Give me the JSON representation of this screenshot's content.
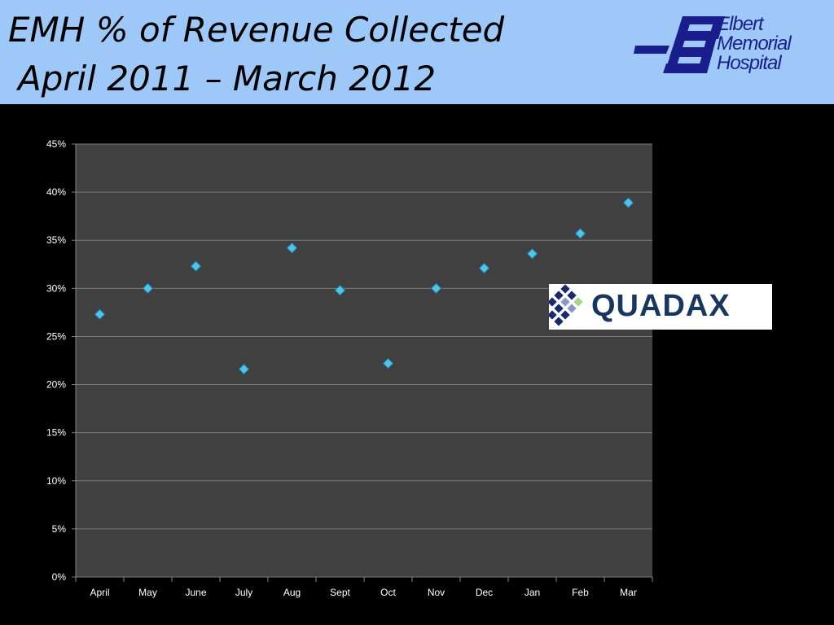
{
  "header": {
    "title_line1": "EMH % of Revenue Collected",
    "title_line2": "April 2011 – March 2012",
    "logo_line1": "Elbert",
    "logo_line2": "Memorial",
    "logo_line3": "Hospital",
    "bg_color": "#9dc8f7",
    "logo_color": "#1a1e8c"
  },
  "sponsor": {
    "name": "QUADAX",
    "color": "#17375e"
  },
  "chart_data": {
    "type": "scatter",
    "title": "",
    "xlabel": "",
    "ylabel": "",
    "categories": [
      "April",
      "May",
      "June",
      "July",
      "Aug",
      "Sept",
      "Oct",
      "Nov",
      "Dec",
      "Jan",
      "Feb",
      "Mar"
    ],
    "series": [
      {
        "values": [
          27.3,
          30.0,
          32.3,
          21.6,
          34.2,
          29.8,
          22.2,
          30.0,
          32.1,
          33.6,
          35.7,
          38.9
        ]
      }
    ],
    "ylim": [
      0,
      45
    ],
    "yticks": [
      0,
      5,
      10,
      15,
      20,
      25,
      30,
      35,
      40,
      45
    ],
    "ytick_format": "%",
    "grid": true,
    "plot_bg": "#404040",
    "marker_color": "#4fc3e8",
    "marker": "diamond",
    "legend": "none"
  }
}
